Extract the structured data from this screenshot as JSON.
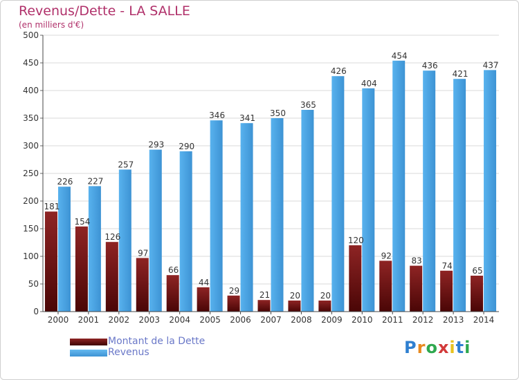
{
  "header": {
    "title": "Revenus/Dette - LA SALLE",
    "subtitle": "(en milliers d'€)"
  },
  "chart_data": {
    "type": "bar",
    "title": "Revenus/Dette - LA SALLE",
    "subtitle": "(en milliers d'€)",
    "xlabel": "",
    "ylabel": "",
    "ylim": [
      0,
      500
    ],
    "yticks": [
      0,
      50,
      100,
      150,
      200,
      250,
      300,
      350,
      400,
      450,
      500
    ],
    "grid": true,
    "legend_position": "bottom-left",
    "categories": [
      "2000",
      "2001",
      "2002",
      "2003",
      "2004",
      "2005",
      "2006",
      "2007",
      "2008",
      "2009",
      "2010",
      "2011",
      "2012",
      "2013",
      "2014"
    ],
    "series": [
      {
        "name": "Montant de la Dette",
        "color": "#7a1a1a",
        "values": [
          181,
          154,
          126,
          97,
          66,
          44,
          29,
          21,
          20,
          20,
          120,
          92,
          83,
          74,
          65
        ]
      },
      {
        "name": "Revenus",
        "color": "#4aa3e0",
        "values": [
          226,
          227,
          257,
          293,
          290,
          346,
          341,
          350,
          365,
          426,
          404,
          454,
          436,
          421,
          437
        ]
      }
    ]
  },
  "legend": {
    "items": [
      {
        "label": "Montant de la Dette",
        "color": "#6b1212"
      },
      {
        "label": "Revenus",
        "color": "#4aa3e0"
      }
    ]
  },
  "logo": {
    "letters": [
      "P",
      "r",
      "o",
      "x",
      "i",
      "t",
      "i"
    ],
    "colors": [
      "#2f7fd0",
      "#e8891f",
      "#2fa84f",
      "#d23a3a",
      "#e8c21f",
      "#2f7fd0",
      "#2fa84f"
    ]
  }
}
